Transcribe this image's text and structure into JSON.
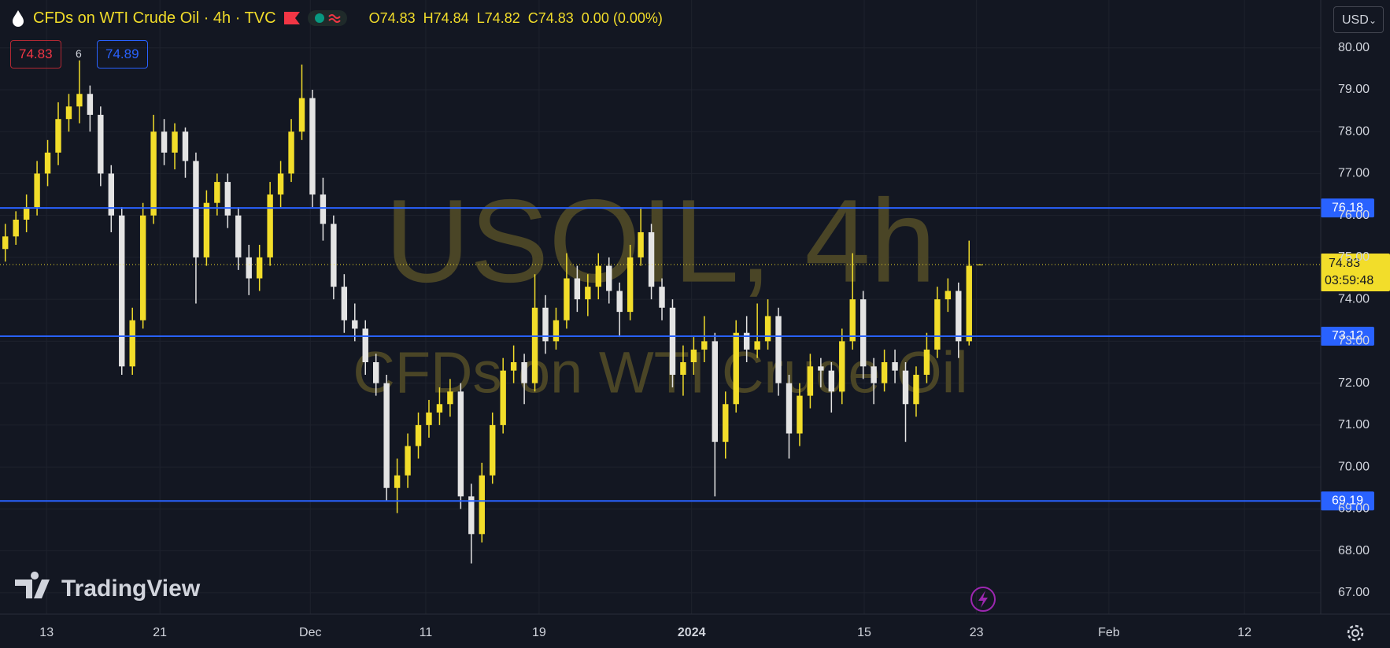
{
  "chart_data": {
    "type": "candlestick",
    "title": "CFDs on WTI Crude Oil · 4h · TVC",
    "ohlc_labels": [
      "O",
      "H",
      "L",
      "C"
    ],
    "change": "0.00 (0.00%)",
    "sell_price": 74.83,
    "spread": 6,
    "buy_price": 74.89,
    "currency": "USD",
    "watermark": "USOIL, 4h",
    "watermark_subtitle": "CFDs on WTI Crude Oil",
    "brand": "TradingView",
    "countdown": "03:59:48",
    "up_color": "#f2dd2a",
    "down_color": "#e4e4e4",
    "grid": true,
    "ohlc": [
      [
        75.2,
        75.8,
        74.9,
        75.5
      ],
      [
        75.5,
        76.1,
        75.3,
        75.9
      ],
      [
        75.9,
        76.5,
        75.6,
        76.2
      ],
      [
        76.2,
        77.3,
        76.0,
        77.0
      ],
      [
        77.0,
        77.8,
        76.7,
        77.5
      ],
      [
        77.5,
        78.7,
        77.2,
        78.3
      ],
      [
        78.3,
        78.9,
        78.0,
        78.6
      ],
      [
        78.6,
        79.7,
        78.2,
        78.9
      ],
      [
        78.9,
        79.1,
        78.0,
        78.4
      ],
      [
        78.4,
        78.6,
        76.7,
        77.0
      ],
      [
        77.0,
        77.2,
        75.6,
        76.0
      ],
      [
        76.0,
        76.2,
        72.2,
        72.4
      ],
      [
        72.4,
        73.8,
        72.2,
        73.5
      ],
      [
        73.5,
        76.3,
        73.3,
        76.0
      ],
      [
        76.0,
        78.4,
        75.8,
        78.0
      ],
      [
        78.0,
        78.3,
        77.2,
        77.5
      ],
      [
        77.5,
        78.2,
        77.1,
        78.0
      ],
      [
        78.0,
        78.1,
        76.9,
        77.3
      ],
      [
        77.3,
        77.5,
        73.9,
        75.0
      ],
      [
        75.0,
        76.6,
        74.8,
        76.3
      ],
      [
        76.3,
        77.0,
        76.0,
        76.8
      ],
      [
        76.8,
        77.0,
        75.7,
        76.0
      ],
      [
        76.0,
        76.2,
        74.7,
        75.0
      ],
      [
        75.0,
        75.3,
        74.1,
        74.5
      ],
      [
        74.5,
        75.3,
        74.2,
        75.0
      ],
      [
        75.0,
        76.8,
        74.8,
        76.5
      ],
      [
        76.5,
        77.3,
        76.2,
        77.0
      ],
      [
        77.0,
        78.3,
        76.8,
        78.0
      ],
      [
        78.0,
        79.6,
        77.8,
        78.8
      ],
      [
        78.8,
        79.0,
        76.2,
        76.5
      ],
      [
        76.5,
        76.9,
        75.4,
        75.8
      ],
      [
        75.8,
        76.0,
        74.0,
        74.3
      ],
      [
        74.3,
        74.6,
        73.2,
        73.5
      ],
      [
        73.5,
        73.9,
        73.0,
        73.3
      ],
      [
        73.3,
        73.5,
        72.2,
        72.5
      ],
      [
        72.5,
        72.7,
        71.7,
        72.0
      ],
      [
        72.0,
        72.2,
        69.2,
        69.5
      ],
      [
        69.5,
        70.2,
        68.9,
        69.8
      ],
      [
        69.8,
        70.8,
        69.5,
        70.5
      ],
      [
        70.5,
        71.3,
        70.2,
        71.0
      ],
      [
        71.0,
        71.6,
        70.7,
        71.3
      ],
      [
        71.3,
        71.9,
        71.0,
        71.5
      ],
      [
        71.5,
        72.1,
        71.2,
        71.8
      ],
      [
        71.8,
        72.0,
        69.0,
        69.3
      ],
      [
        69.3,
        69.6,
        67.7,
        68.4
      ],
      [
        68.4,
        70.1,
        68.2,
        69.8
      ],
      [
        69.8,
        71.3,
        69.6,
        71.0
      ],
      [
        71.0,
        72.6,
        70.8,
        72.3
      ],
      [
        72.3,
        72.9,
        72.0,
        72.5
      ],
      [
        72.5,
        72.7,
        71.5,
        72.0
      ],
      [
        72.0,
        74.6,
        71.8,
        73.8
      ],
      [
        73.8,
        74.1,
        72.7,
        73.0
      ],
      [
        73.0,
        73.8,
        72.8,
        73.5
      ],
      [
        73.5,
        75.1,
        73.3,
        74.5
      ],
      [
        74.5,
        74.8,
        73.7,
        74.0
      ],
      [
        74.0,
        74.6,
        73.6,
        74.3
      ],
      [
        74.3,
        75.1,
        74.0,
        74.8
      ],
      [
        74.8,
        75.0,
        73.9,
        74.2
      ],
      [
        74.2,
        74.4,
        73.1,
        73.7
      ],
      [
        73.7,
        75.3,
        73.5,
        75.0
      ],
      [
        75.0,
        76.2,
        74.8,
        75.6
      ],
      [
        75.6,
        75.8,
        74.0,
        74.3
      ],
      [
        74.3,
        74.5,
        73.5,
        73.8
      ],
      [
        73.8,
        74.0,
        71.9,
        72.2
      ],
      [
        72.2,
        72.9,
        71.7,
        72.5
      ],
      [
        72.5,
        73.1,
        72.2,
        72.8
      ],
      [
        72.8,
        73.6,
        72.5,
        73.0
      ],
      [
        73.0,
        73.2,
        69.3,
        70.6
      ],
      [
        70.6,
        71.8,
        70.2,
        71.5
      ],
      [
        71.5,
        73.5,
        71.3,
        73.2
      ],
      [
        73.2,
        73.6,
        72.5,
        72.8
      ],
      [
        72.8,
        73.9,
        72.6,
        73.0
      ],
      [
        73.0,
        74.0,
        72.8,
        73.6
      ],
      [
        73.6,
        73.8,
        71.7,
        72.0
      ],
      [
        72.0,
        72.2,
        70.2,
        70.8
      ],
      [
        70.8,
        72.0,
        70.5,
        71.7
      ],
      [
        71.7,
        72.7,
        71.4,
        72.4
      ],
      [
        72.4,
        72.6,
        71.9,
        72.3
      ],
      [
        72.3,
        72.5,
        71.3,
        71.8
      ],
      [
        71.8,
        73.3,
        71.5,
        73.0
      ],
      [
        73.0,
        75.1,
        72.8,
        74.0
      ],
      [
        74.0,
        74.2,
        72.1,
        72.4
      ],
      [
        72.4,
        72.6,
        71.5,
        72.0
      ],
      [
        72.0,
        72.8,
        71.8,
        72.5
      ],
      [
        72.5,
        72.8,
        72.0,
        72.3
      ],
      [
        72.3,
        72.5,
        70.6,
        71.5
      ],
      [
        71.5,
        72.4,
        71.2,
        72.2
      ],
      [
        72.2,
        73.2,
        72.0,
        72.8
      ],
      [
        72.8,
        74.3,
        72.6,
        74.0
      ],
      [
        74.0,
        74.5,
        73.7,
        74.2
      ],
      [
        74.2,
        74.4,
        72.6,
        73.0
      ],
      [
        73.0,
        75.4,
        72.9,
        74.8
      ],
      [
        74.83,
        74.84,
        74.82,
        74.83
      ]
    ],
    "levels": [
      {
        "value": 76.18,
        "color": "#2962ff"
      },
      {
        "value": 73.12,
        "color": "#2962ff"
      },
      {
        "value": 69.19,
        "color": "#2962ff"
      }
    ],
    "xlim": [
      -0.5,
      124.2
    ],
    "xticks": [
      {
        "value": 3.9,
        "label": "13"
      },
      {
        "value": 14.6,
        "label": "21"
      },
      {
        "value": 28.8,
        "label": "Dec"
      },
      {
        "value": 39.7,
        "label": "11"
      },
      {
        "value": 50.4,
        "label": "19"
      },
      {
        "value": 64.8,
        "label": "2024"
      },
      {
        "value": 81.1,
        "label": "15"
      },
      {
        "value": 91.7,
        "label": "23"
      },
      {
        "value": 104.2,
        "label": "Feb"
      },
      {
        "value": 117.0,
        "label": "12"
      }
    ],
    "ylim": [
      66.49,
      81.14
    ],
    "yticks": [
      {
        "value": 67,
        "label": "67.00"
      },
      {
        "value": 68,
        "label": "68.00"
      },
      {
        "value": 69,
        "label": "69.00"
      },
      {
        "value": 70,
        "label": "70.00"
      },
      {
        "value": 71,
        "label": "71.00"
      },
      {
        "value": 72,
        "label": "72.00"
      },
      {
        "value": 73,
        "label": "73.00"
      },
      {
        "value": 74,
        "label": "74.00"
      },
      {
        "value": 75,
        "label": "75.00"
      },
      {
        "value": 76,
        "label": "76.00"
      },
      {
        "value": 77,
        "label": "77.00"
      },
      {
        "value": 78,
        "label": "78.00"
      },
      {
        "value": 79,
        "label": "79.00"
      },
      {
        "value": 80,
        "label": "80.00"
      }
    ]
  }
}
